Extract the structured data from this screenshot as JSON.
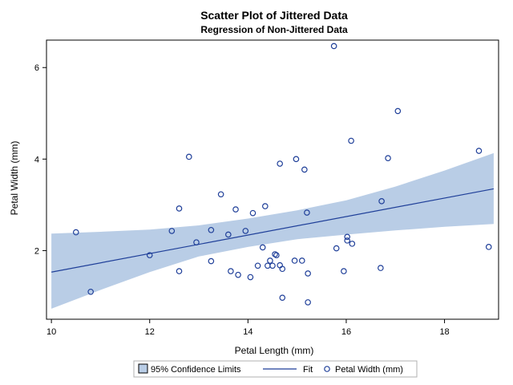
{
  "colors": {
    "band": "#b9cde6",
    "fit": "#1f3f99",
    "marker": "#1f3f99",
    "frame": "#000000"
  },
  "chart_data": {
    "type": "scatter",
    "title": "Scatter Plot of Jittered Data",
    "subtitle": "Regression of Non-Jittered Data",
    "xlabel": "Petal Length (mm)",
    "ylabel": "Petal Width (mm)",
    "xlim": [
      9.9,
      19.1
    ],
    "ylim": [
      0.5,
      6.6
    ],
    "x_ticks": [
      10,
      12,
      14,
      16,
      18
    ],
    "y_ticks": [
      2,
      4,
      6
    ],
    "grid": false,
    "legend_position": "bottom",
    "legend": [
      "95% Confidence Limits",
      "Fit",
      "Petal Width (mm)"
    ],
    "fit": {
      "x": [
        10,
        19
      ],
      "y": [
        1.53,
        3.35
      ]
    },
    "confidence_band": {
      "x": [
        10,
        11,
        12,
        13,
        14,
        15,
        16,
        17,
        18,
        19
      ],
      "upper": [
        2.37,
        2.41,
        2.46,
        2.55,
        2.7,
        2.88,
        3.1,
        3.4,
        3.75,
        4.13
      ],
      "lower": [
        0.73,
        1.14,
        1.53,
        1.87,
        2.08,
        2.25,
        2.35,
        2.44,
        2.52,
        2.58
      ]
    },
    "points": [
      {
        "x": 10.5,
        "y": 2.4
      },
      {
        "x": 10.8,
        "y": 1.1
      },
      {
        "x": 12.0,
        "y": 1.9
      },
      {
        "x": 12.45,
        "y": 2.43
      },
      {
        "x": 12.6,
        "y": 2.92
      },
      {
        "x": 12.6,
        "y": 1.55
      },
      {
        "x": 12.8,
        "y": 4.05
      },
      {
        "x": 12.95,
        "y": 2.18
      },
      {
        "x": 13.25,
        "y": 1.77
      },
      {
        "x": 13.25,
        "y": 2.45
      },
      {
        "x": 13.45,
        "y": 3.23
      },
      {
        "x": 13.6,
        "y": 2.35
      },
      {
        "x": 13.65,
        "y": 1.55
      },
      {
        "x": 13.75,
        "y": 2.9
      },
      {
        "x": 13.8,
        "y": 1.47
      },
      {
        "x": 13.95,
        "y": 2.43
      },
      {
        "x": 14.05,
        "y": 1.42
      },
      {
        "x": 14.1,
        "y": 2.82
      },
      {
        "x": 14.2,
        "y": 1.67
      },
      {
        "x": 14.3,
        "y": 2.07
      },
      {
        "x": 14.35,
        "y": 2.97
      },
      {
        "x": 14.4,
        "y": 1.67
      },
      {
        "x": 14.45,
        "y": 1.78
      },
      {
        "x": 14.5,
        "y": 1.67
      },
      {
        "x": 14.55,
        "y": 1.92
      },
      {
        "x": 14.58,
        "y": 1.9
      },
      {
        "x": 14.65,
        "y": 3.9
      },
      {
        "x": 14.65,
        "y": 1.68
      },
      {
        "x": 14.7,
        "y": 1.6
      },
      {
        "x": 14.7,
        "y": 0.97
      },
      {
        "x": 14.95,
        "y": 1.78
      },
      {
        "x": 14.98,
        "y": 4.0
      },
      {
        "x": 15.1,
        "y": 1.78
      },
      {
        "x": 15.15,
        "y": 3.77
      },
      {
        "x": 15.2,
        "y": 2.83
      },
      {
        "x": 15.22,
        "y": 1.5
      },
      {
        "x": 15.22,
        "y": 0.87
      },
      {
        "x": 15.75,
        "y": 6.47
      },
      {
        "x": 15.8,
        "y": 2.05
      },
      {
        "x": 15.95,
        "y": 1.55
      },
      {
        "x": 16.02,
        "y": 2.3
      },
      {
        "x": 16.02,
        "y": 2.22
      },
      {
        "x": 16.1,
        "y": 4.4
      },
      {
        "x": 16.12,
        "y": 2.15
      },
      {
        "x": 16.7,
        "y": 1.62
      },
      {
        "x": 16.72,
        "y": 3.08
      },
      {
        "x": 16.85,
        "y": 4.02
      },
      {
        "x": 17.05,
        "y": 5.05
      },
      {
        "x": 18.7,
        "y": 4.18
      },
      {
        "x": 18.9,
        "y": 2.08
      }
    ]
  }
}
